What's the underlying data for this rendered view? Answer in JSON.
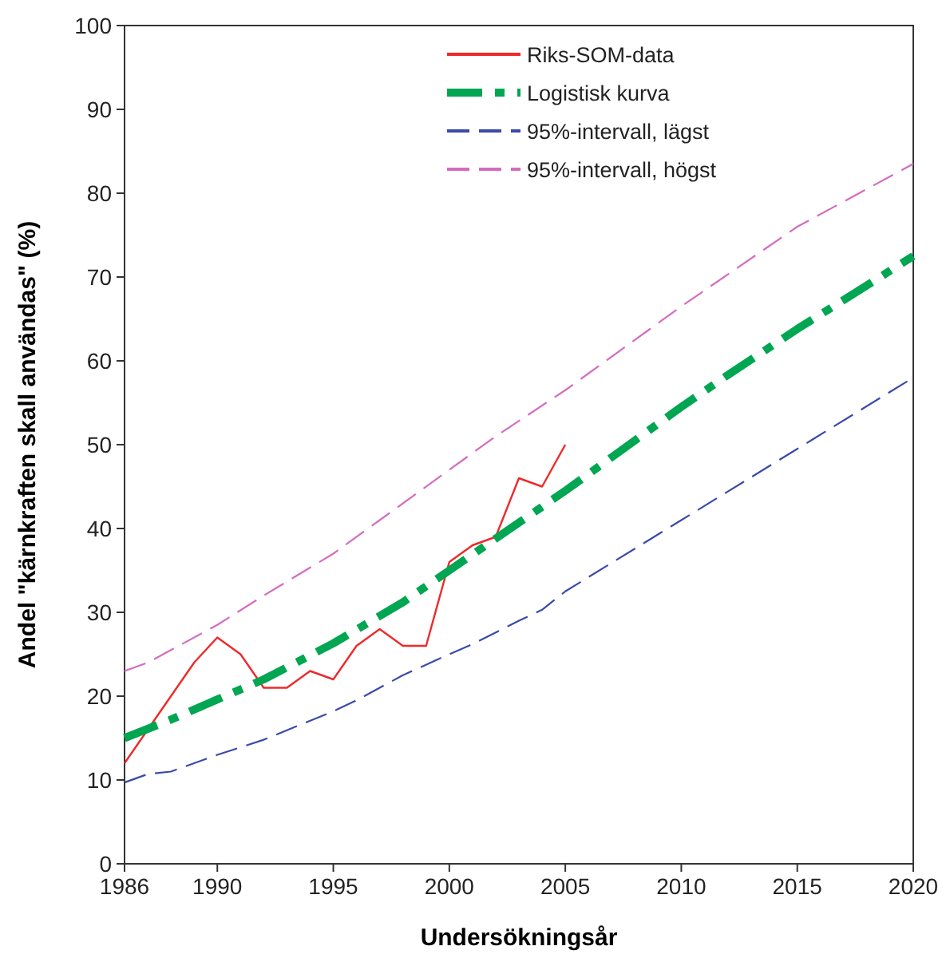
{
  "chart_data": {
    "type": "line",
    "xlabel": "Undersökningsår",
    "ylabel": "Andel \"kärnkraften skall användas\" (%)",
    "xlim": [
      1986,
      2020
    ],
    "xticks": [
      1986,
      1990,
      1995,
      2000,
      2005,
      2010,
      2015,
      2020
    ],
    "ylim": [
      0,
      100
    ],
    "yticks": [
      0,
      10,
      20,
      30,
      40,
      50,
      60,
      70,
      80,
      90,
      100
    ],
    "grid": false,
    "legend": "top right",
    "series": [
      {
        "name": "Riks-SOM-data",
        "color": "#ee2a2a",
        "line_style": "solid",
        "x": [
          1986,
          1987,
          1988,
          1989,
          1990,
          1991,
          1992,
          1993,
          1994,
          1995,
          1996,
          1997,
          1998,
          1999,
          2000,
          2001,
          2002,
          2003,
          2004,
          2005
        ],
        "values": [
          12,
          16,
          20,
          24,
          27,
          25,
          21,
          21,
          23,
          22,
          26,
          28,
          26,
          26,
          36,
          38,
          39,
          46,
          45,
          50
        ]
      },
      {
        "name": "Logistisk kurva",
        "color": "#00a651",
        "line_style": "dashdot",
        "x": [
          1986,
          1988,
          1990,
          1992,
          1995,
          1998,
          2000,
          2002,
          2005,
          2008,
          2010,
          2012,
          2015,
          2018,
          2020
        ],
        "values": [
          15,
          17.2,
          19.6,
          22,
          26.3,
          31.2,
          35,
          38.8,
          44.5,
          50.5,
          54.5,
          58.3,
          63.8,
          69,
          72.5
        ]
      },
      {
        "name": "95%-intervall, lägst",
        "color": "#3a4aa8",
        "line_style": "dashed",
        "x": [
          1986,
          1987,
          1988,
          1990,
          1992,
          1995,
          1996,
          1998,
          2000,
          2001,
          2003,
          2004,
          2005,
          2010,
          2015,
          2020
        ],
        "values": [
          9.7,
          10.7,
          11,
          13,
          14.8,
          18.2,
          19.5,
          22.5,
          25,
          26.2,
          29,
          30.3,
          32.5,
          41,
          49.5,
          58
        ]
      },
      {
        "name": "95%-intervall, högst",
        "color": "#d46cc0",
        "line_style": "dashed",
        "x": [
          1986,
          1987,
          1990,
          1992,
          1995,
          1997,
          2000,
          2002,
          2005,
          2010,
          2015,
          2020
        ],
        "values": [
          23,
          24,
          28.5,
          32,
          37,
          41,
          47,
          51,
          56.5,
          66.5,
          76,
          83.5
        ]
      }
    ]
  }
}
